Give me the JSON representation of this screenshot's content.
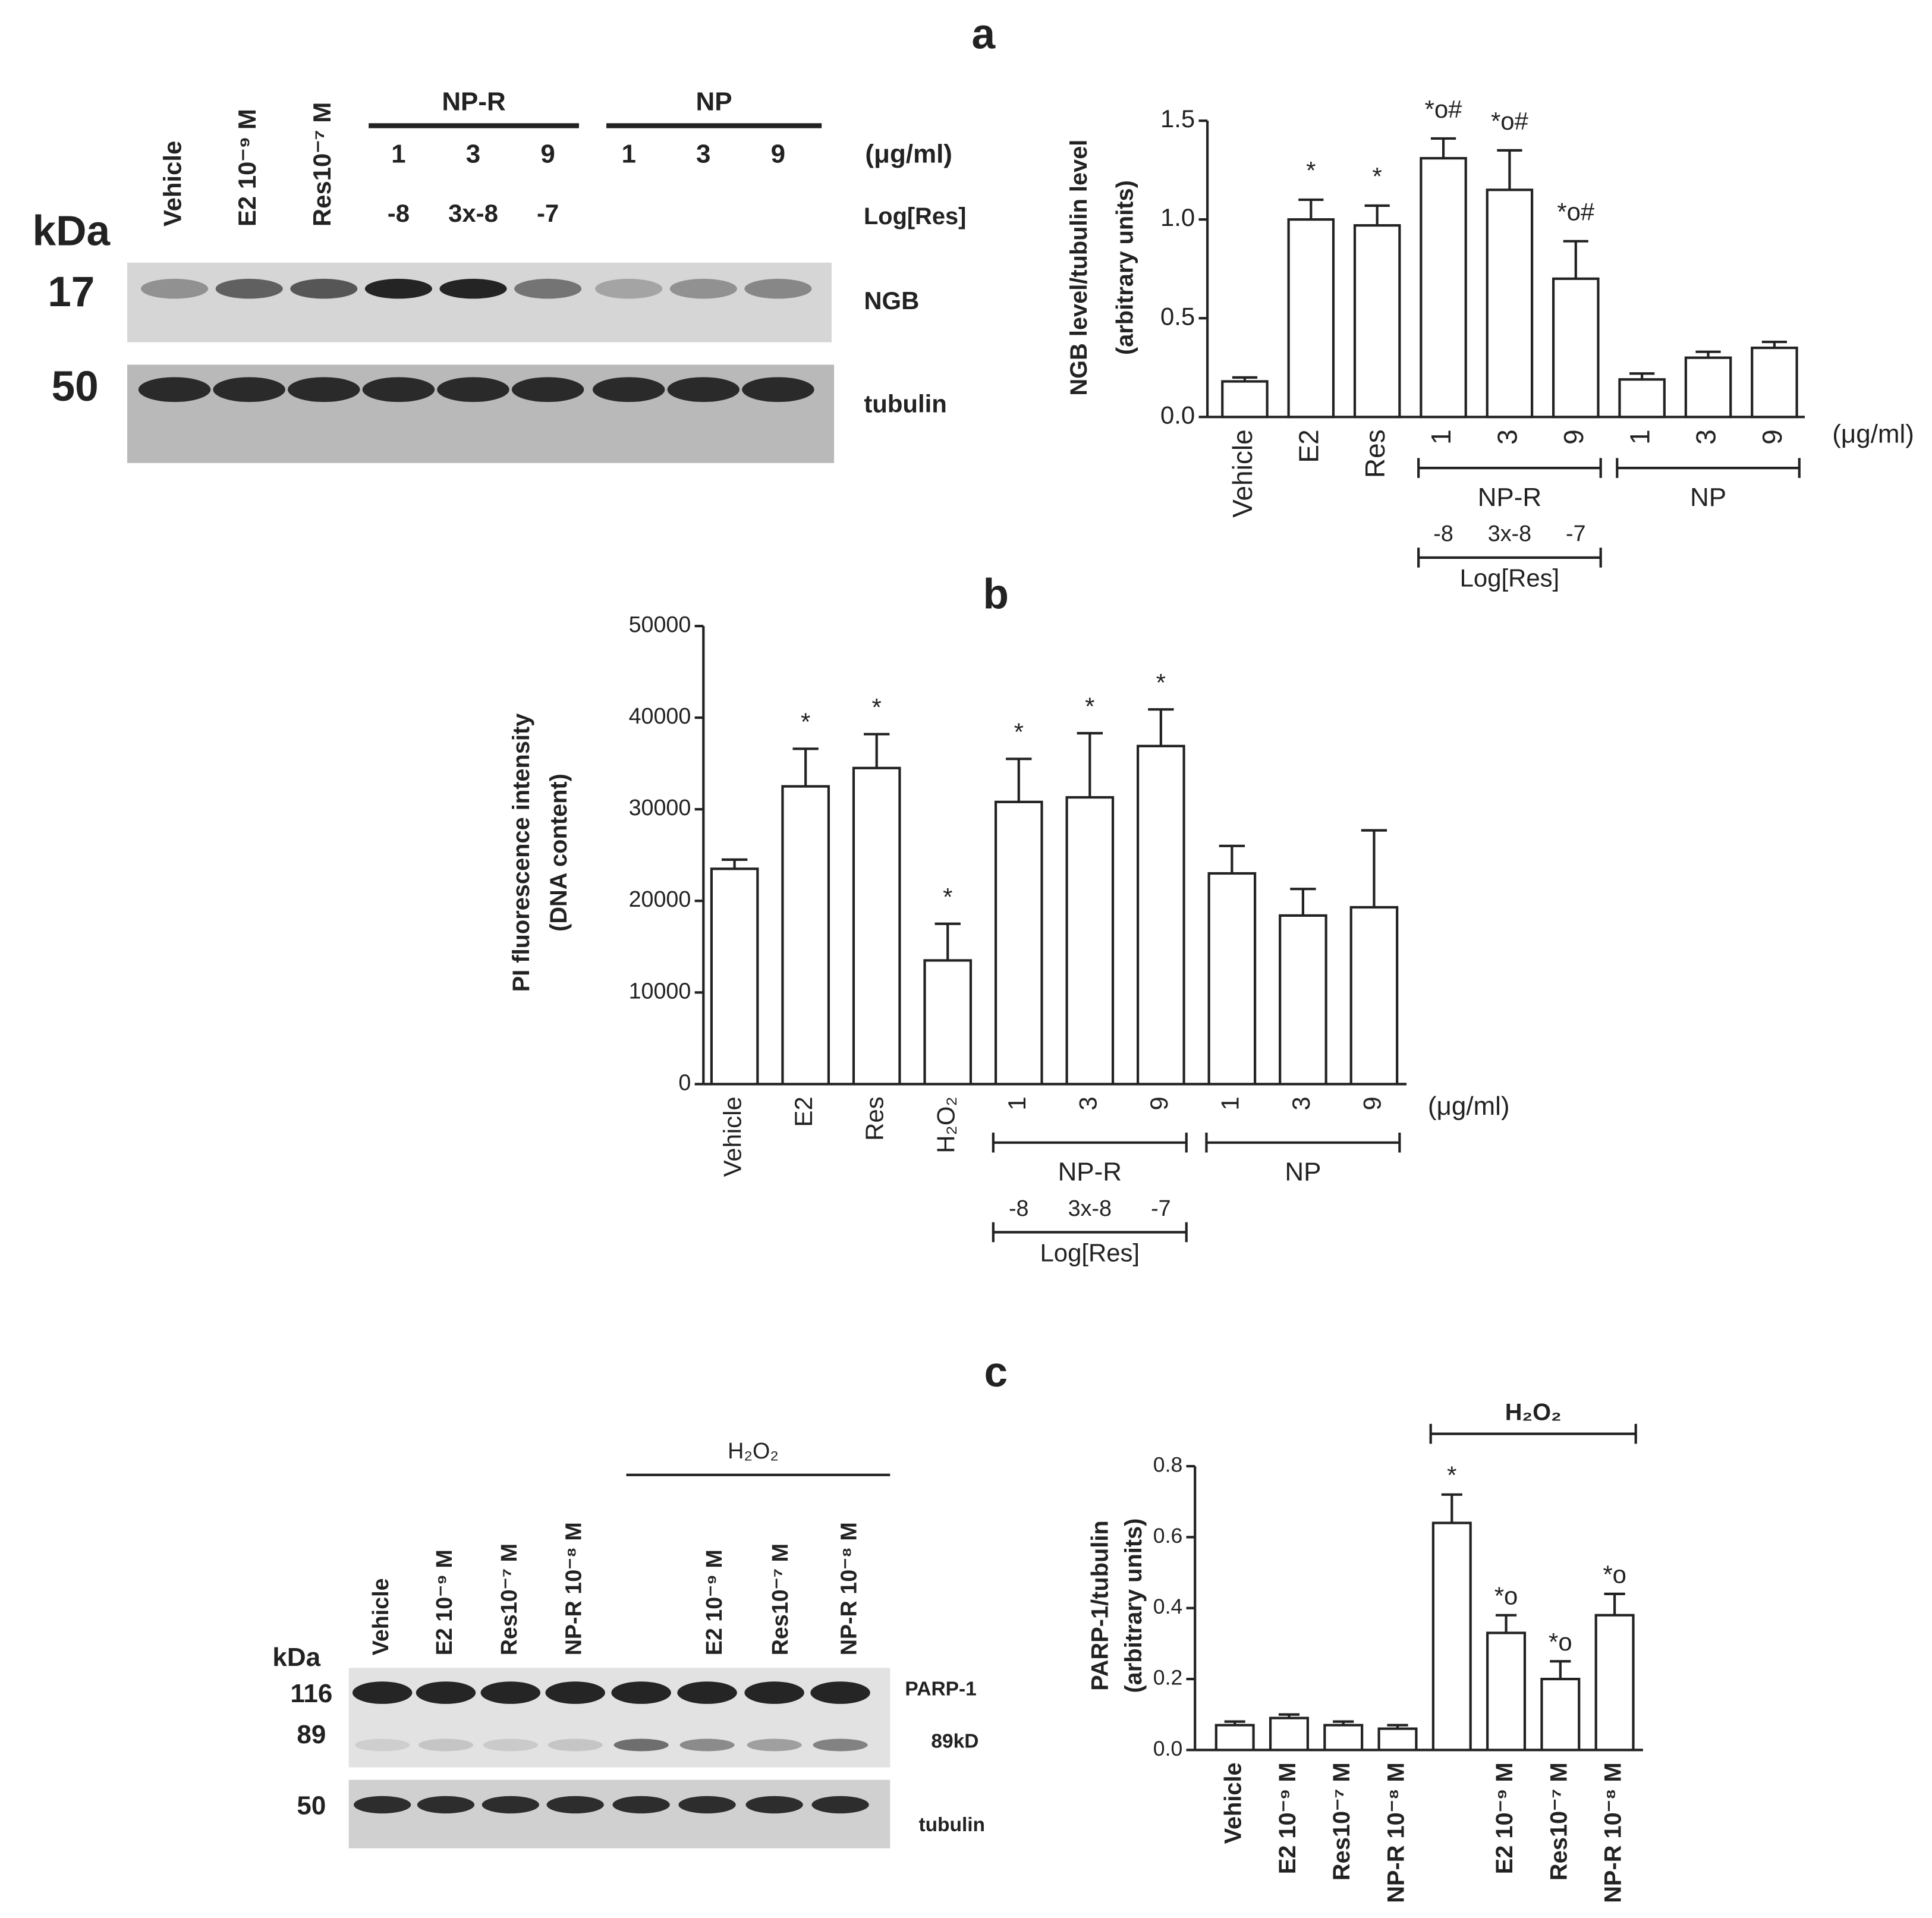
{
  "chart_data": [
    {
      "type": "bar",
      "title": "a",
      "ylabel": [
        "NGB level/tubulin level",
        "(arbitrary units)"
      ],
      "categories": [
        "Vehicle",
        "E2",
        "Res",
        "1",
        "3",
        "9",
        "1",
        "3",
        "9"
      ],
      "values": [
        0.18,
        1.0,
        0.97,
        1.31,
        1.15,
        0.7,
        0.19,
        0.3,
        0.35
      ],
      "errors": [
        0.02,
        0.1,
        0.1,
        0.1,
        0.2,
        0.19,
        0.03,
        0.03,
        0.03
      ],
      "markers": [
        null,
        "*",
        "*",
        "*o#",
        "*o#",
        "*o#",
        null,
        null,
        null
      ],
      "unit": "(μg/ml)",
      "groups": [
        {
          "label": "NP-R",
          "sublabels": [
            "-8",
            "3x-8",
            "-7"
          ],
          "sublabel_title": "Log[Res]"
        },
        {
          "label": "NP"
        }
      ],
      "color": "#ffffff",
      "ylim": [
        0,
        1.5
      ],
      "yticks": [
        {
          "value": 0,
          "label": "0.0"
        },
        0.5,
        {
          "value": 1,
          "label": "1.0"
        },
        1.5
      ],
      "grid": false
    },
    {
      "type": "bar",
      "title": "b",
      "ylabel": [
        "PI fluorescence intensity",
        "(DNA content)"
      ],
      "categories": [
        "Vehicle",
        "E2",
        "Res",
        "H₂O₂",
        "1",
        "3",
        "9",
        "1",
        "3",
        "9"
      ],
      "values": [
        23500,
        32500,
        34500,
        13500,
        30800,
        31300,
        36900,
        23000,
        18400,
        19300
      ],
      "errors": [
        1000,
        4100,
        3700,
        4000,
        4700,
        7000,
        4000,
        3000,
        2900,
        8400
      ],
      "markers": [
        null,
        "*",
        "*",
        "*",
        "*",
        "*",
        "*",
        null,
        null,
        null
      ],
      "unit": "(μg/ml)",
      "groups": [
        {
          "label": "NP-R",
          "sublabels": [
            "-8",
            "3x-8",
            "-7"
          ],
          "sublabel_title": "Log[Res]"
        },
        {
          "label": "NP"
        }
      ],
      "color": "#ffffff",
      "ylim": [
        0,
        50000
      ],
      "yticks": [
        0,
        10000,
        20000,
        30000,
        40000,
        50000
      ],
      "grid": false
    },
    {
      "type": "bar",
      "title": "c",
      "ylabel": [
        "PARP-1/tubulin",
        "(arbitrary units)"
      ],
      "categories": [
        "Vehicle",
        "E2 10⁻⁹ M",
        "Res10⁻⁷ M",
        "NP-R 10⁻⁸ M",
        null,
        "E2 10⁻⁹ M",
        "Res10⁻⁷ M",
        "NP-R 10⁻⁸ M"
      ],
      "values": [
        0.07,
        0.09,
        0.07,
        0.06,
        0.64,
        0.33,
        0.2,
        0.38
      ],
      "errors": [
        0.01,
        0.01,
        0.01,
        0.01,
        0.08,
        0.05,
        0.05,
        0.06
      ],
      "markers": [
        null,
        null,
        null,
        null,
        "*",
        "*o",
        "*o",
        "*o"
      ],
      "groups": [
        {
          "label": "H₂O₂"
        }
      ],
      "color": "#ffffff",
      "ylim": [
        0,
        0.8
      ],
      "yticks": [
        {
          "value": 0,
          "label": "0.0"
        },
        0.2,
        0.4,
        0.6,
        0.8
      ],
      "grid": false
    }
  ],
  "blot_a": {
    "lanes": [
      "Vehicle",
      "E2 10⁻⁹ M",
      "Res10⁻⁷ M"
    ],
    "groups": [
      "NP-R",
      "NP"
    ],
    "doses": [
      "1",
      "3",
      "9",
      "1",
      "3",
      "9"
    ],
    "dose_unit": "(μg/ml)",
    "log_values": [
      "-8",
      "3x-8",
      "-7"
    ],
    "log_label": "Log[Res]",
    "kda": "kDa",
    "markers": [
      "17",
      "50"
    ],
    "bands": [
      "NGB",
      "tubulin"
    ]
  },
  "blot_c": {
    "group": "H₂O₂",
    "lanes": [
      "Vehicle",
      "E2 10⁻⁹ M",
      "Res10⁻⁷ M",
      "NP-R 10⁻⁸ M",
      null,
      "E2 10⁻⁹ M",
      "Res10⁻⁷ M",
      "NP-R 10⁻⁸ M"
    ],
    "kda": "kDa",
    "markers": [
      "116",
      "89",
      "50"
    ],
    "bands": [
      "PARP-1",
      "89kD",
      "tubulin"
    ]
  }
}
